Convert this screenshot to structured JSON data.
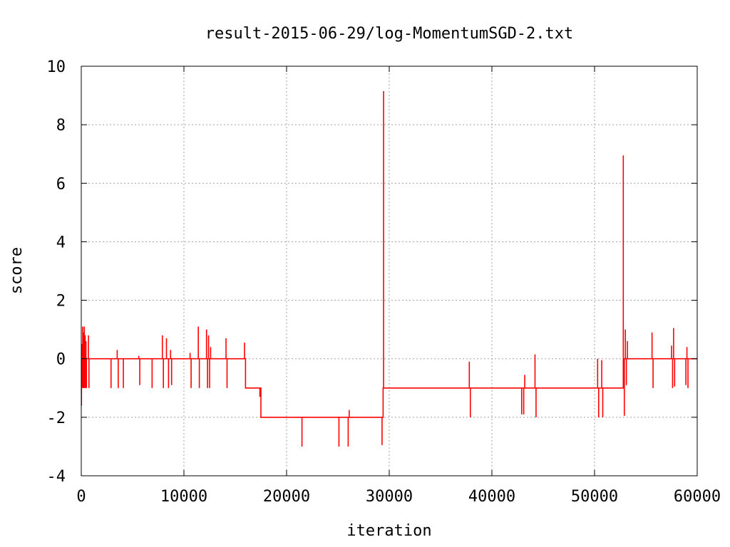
{
  "chart_data": {
    "type": "line",
    "title": "result-2015-06-29/log-MomentumSGD-2.txt",
    "xlabel": "iteration",
    "ylabel": "score",
    "xlim": [
      0,
      60000
    ],
    "ylim": [
      -4,
      10
    ],
    "xticks": [
      0,
      10000,
      20000,
      30000,
      40000,
      50000,
      60000
    ],
    "yticks": [
      -4,
      -2,
      0,
      2,
      4,
      6,
      8,
      10
    ],
    "xtick_labels": [
      "0",
      "10000",
      "20000",
      "30000",
      "40000",
      "50000",
      "60000"
    ],
    "ytick_labels": [
      "-4",
      "-2",
      "0",
      "2",
      "4",
      "6",
      "8",
      "10"
    ],
    "grid": true,
    "legend": "none",
    "series": [
      {
        "color": "#ff0000",
        "segments": [
          {
            "from": 0,
            "to": 16000,
            "y": 0
          },
          {
            "from": 16000,
            "to": 17500,
            "y": -1
          },
          {
            "from": 17500,
            "to": 29400,
            "y": -2
          },
          {
            "from": 29400,
            "to": 52800,
            "y": -1
          },
          {
            "from": 52800,
            "to": 60000,
            "y": 0
          }
        ],
        "spikes": [
          {
            "x": 20,
            "y": -1.6
          },
          {
            "x": 60,
            "y": 0.5
          },
          {
            "x": 100,
            "y": -1.0
          },
          {
            "x": 140,
            "y": 1.1
          },
          {
            "x": 180,
            "y": -1.0
          },
          {
            "x": 220,
            "y": 0.9
          },
          {
            "x": 260,
            "y": -1.0
          },
          {
            "x": 300,
            "y": 1.1
          },
          {
            "x": 340,
            "y": -1.0
          },
          {
            "x": 380,
            "y": 0.8
          },
          {
            "x": 420,
            "y": -1.0
          },
          {
            "x": 460,
            "y": 0.6
          },
          {
            "x": 500,
            "y": -1.0
          },
          {
            "x": 700,
            "y": 0.8
          },
          {
            "x": 750,
            "y": -1.0
          },
          {
            "x": 2900,
            "y": -1.0
          },
          {
            "x": 3500,
            "y": 0.3
          },
          {
            "x": 3600,
            "y": -1.0
          },
          {
            "x": 4100,
            "y": -1.0
          },
          {
            "x": 5600,
            "y": 0.1
          },
          {
            "x": 5700,
            "y": -0.9
          },
          {
            "x": 6900,
            "y": -1.0
          },
          {
            "x": 7900,
            "y": 0.8
          },
          {
            "x": 8000,
            "y": -1.0
          },
          {
            "x": 8300,
            "y": 0.7
          },
          {
            "x": 8500,
            "y": -1.0
          },
          {
            "x": 8700,
            "y": 0.3
          },
          {
            "x": 8800,
            "y": -0.9
          },
          {
            "x": 10600,
            "y": 0.2
          },
          {
            "x": 10700,
            "y": -1.0
          },
          {
            "x": 11400,
            "y": 1.1
          },
          {
            "x": 11500,
            "y": -1.0
          },
          {
            "x": 12200,
            "y": 1.0
          },
          {
            "x": 12300,
            "y": -1.0
          },
          {
            "x": 12400,
            "y": 0.8
          },
          {
            "x": 12500,
            "y": -1.0
          },
          {
            "x": 12600,
            "y": 0.4
          },
          {
            "x": 14100,
            "y": 0.7
          },
          {
            "x": 14200,
            "y": -1.0
          },
          {
            "x": 15900,
            "y": 0.55
          },
          {
            "x": 17400,
            "y": -1.3
          },
          {
            "x": 21500,
            "y": -3.0
          },
          {
            "x": 25100,
            "y": -3.0
          },
          {
            "x": 26000,
            "y": -3.0
          },
          {
            "x": 26100,
            "y": -1.75
          },
          {
            "x": 29300,
            "y": -2.95
          },
          {
            "x": 29450,
            "y": 9.15
          },
          {
            "x": 37800,
            "y": -0.1
          },
          {
            "x": 37900,
            "y": -2.0
          },
          {
            "x": 42900,
            "y": -1.9
          },
          {
            "x": 43100,
            "y": -1.9
          },
          {
            "x": 43200,
            "y": -0.55
          },
          {
            "x": 44200,
            "y": 0.15
          },
          {
            "x": 44300,
            "y": -2.0
          },
          {
            "x": 50300,
            "y": 0.0
          },
          {
            "x": 50400,
            "y": -2.0
          },
          {
            "x": 50700,
            "y": -0.05
          },
          {
            "x": 50800,
            "y": -2.0
          },
          {
            "x": 52800,
            "y": 6.95
          },
          {
            "x": 52900,
            "y": -1.95
          },
          {
            "x": 53000,
            "y": 1.0
          },
          {
            "x": 53100,
            "y": -0.9
          },
          {
            "x": 53200,
            "y": 0.6
          },
          {
            "x": 55600,
            "y": 0.9
          },
          {
            "x": 55700,
            "y": -1.0
          },
          {
            "x": 57500,
            "y": 0.45
          },
          {
            "x": 57600,
            "y": -1.0
          },
          {
            "x": 57700,
            "y": 1.05
          },
          {
            "x": 57800,
            "y": -0.95
          },
          {
            "x": 58800,
            "y": 0.0
          },
          {
            "x": 58900,
            "y": -0.9
          },
          {
            "x": 59000,
            "y": 0.4
          },
          {
            "x": 59100,
            "y": -1.0
          }
        ]
      }
    ]
  }
}
